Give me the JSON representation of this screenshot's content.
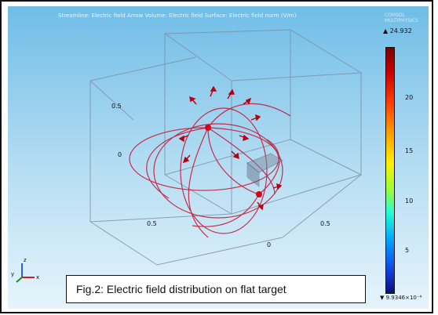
{
  "plot": {
    "top_caption": "Streamline: Electric field  Arrow Volume: Electric field  Surface: Electric field norm (V/m)",
    "brand": "COMSOL MULTIPHYSICS",
    "max_value": "▲ 24.932",
    "min_value": "▼ 9.9346×10⁻⁶",
    "colorbar_ticks": [
      "20",
      "15",
      "10",
      "5"
    ],
    "axis_labels": [
      "0.5",
      "0",
      "0.5",
      "0.5",
      "0"
    ],
    "triad": {
      "y": "y",
      "z": "z",
      "x": "x"
    }
  },
  "caption": "Fig.2: Electric field distribution on flat target",
  "colors": {
    "background_top": "#6fbde7",
    "field_lines": "#c8102e"
  }
}
